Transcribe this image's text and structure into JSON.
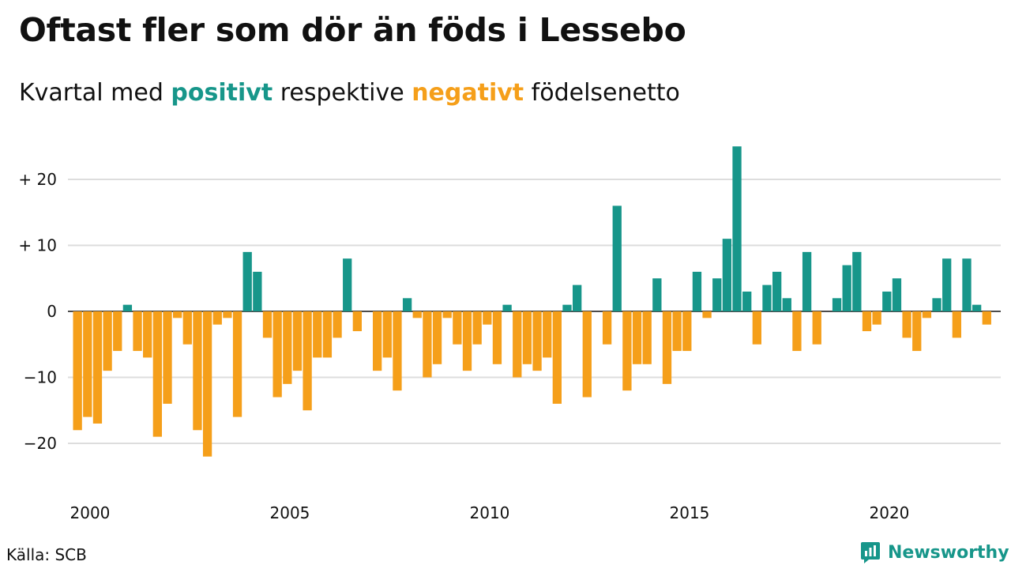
{
  "title": "Oftast fler som dör än föds i Lessebo",
  "subtitle": {
    "prefix": "Kvartal med ",
    "positive": "positivt",
    "middle": " respektive ",
    "negative": "negativt",
    "suffix": " födelsenetto"
  },
  "source": "Källa: SCB",
  "brand": "Newsworthy",
  "colors": {
    "positive": "#17968a",
    "negative": "#f59f1a",
    "grid": "#dddddd",
    "brand": "#17968a"
  },
  "chart_data": {
    "type": "bar",
    "start_year": 2000,
    "quarters_per_year": 4,
    "ylim": [
      -25,
      25
    ],
    "yticks": [
      20,
      10,
      0,
      -10,
      -20
    ],
    "ytick_labels": [
      "+ 20",
      "+ 10",
      "0",
      "−10",
      "−20"
    ],
    "xtick_labels": [
      "2000",
      "2005",
      "2010",
      "2015",
      "2020"
    ],
    "xtick_years": [
      2000,
      2005,
      2010,
      2015,
      2020
    ],
    "grid": true,
    "values": [
      -18,
      -16,
      -17,
      -9,
      -6,
      1,
      -6,
      -7,
      -19,
      -14,
      -1,
      -5,
      -18,
      -22,
      -2,
      -1,
      -16,
      9,
      6,
      -4,
      -13,
      -11,
      -9,
      -15,
      -7,
      -7,
      -4,
      8,
      -3,
      0,
      -9,
      -7,
      -12,
      2,
      -1,
      -10,
      -8,
      -1,
      -5,
      -9,
      -5,
      -2,
      -8,
      1,
      -10,
      -8,
      -9,
      -7,
      -14,
      1,
      4,
      -13,
      0,
      -5,
      16,
      -12,
      -8,
      -8,
      5,
      -11,
      -6,
      -6,
      6,
      -1,
      5,
      11,
      25,
      3,
      -5,
      4,
      6,
      2,
      -6,
      9,
      -5,
      0,
      2,
      7,
      9,
      -3,
      -2,
      3,
      5,
      -4,
      -6,
      -1,
      2,
      8,
      -4,
      8,
      1,
      -2
    ]
  }
}
